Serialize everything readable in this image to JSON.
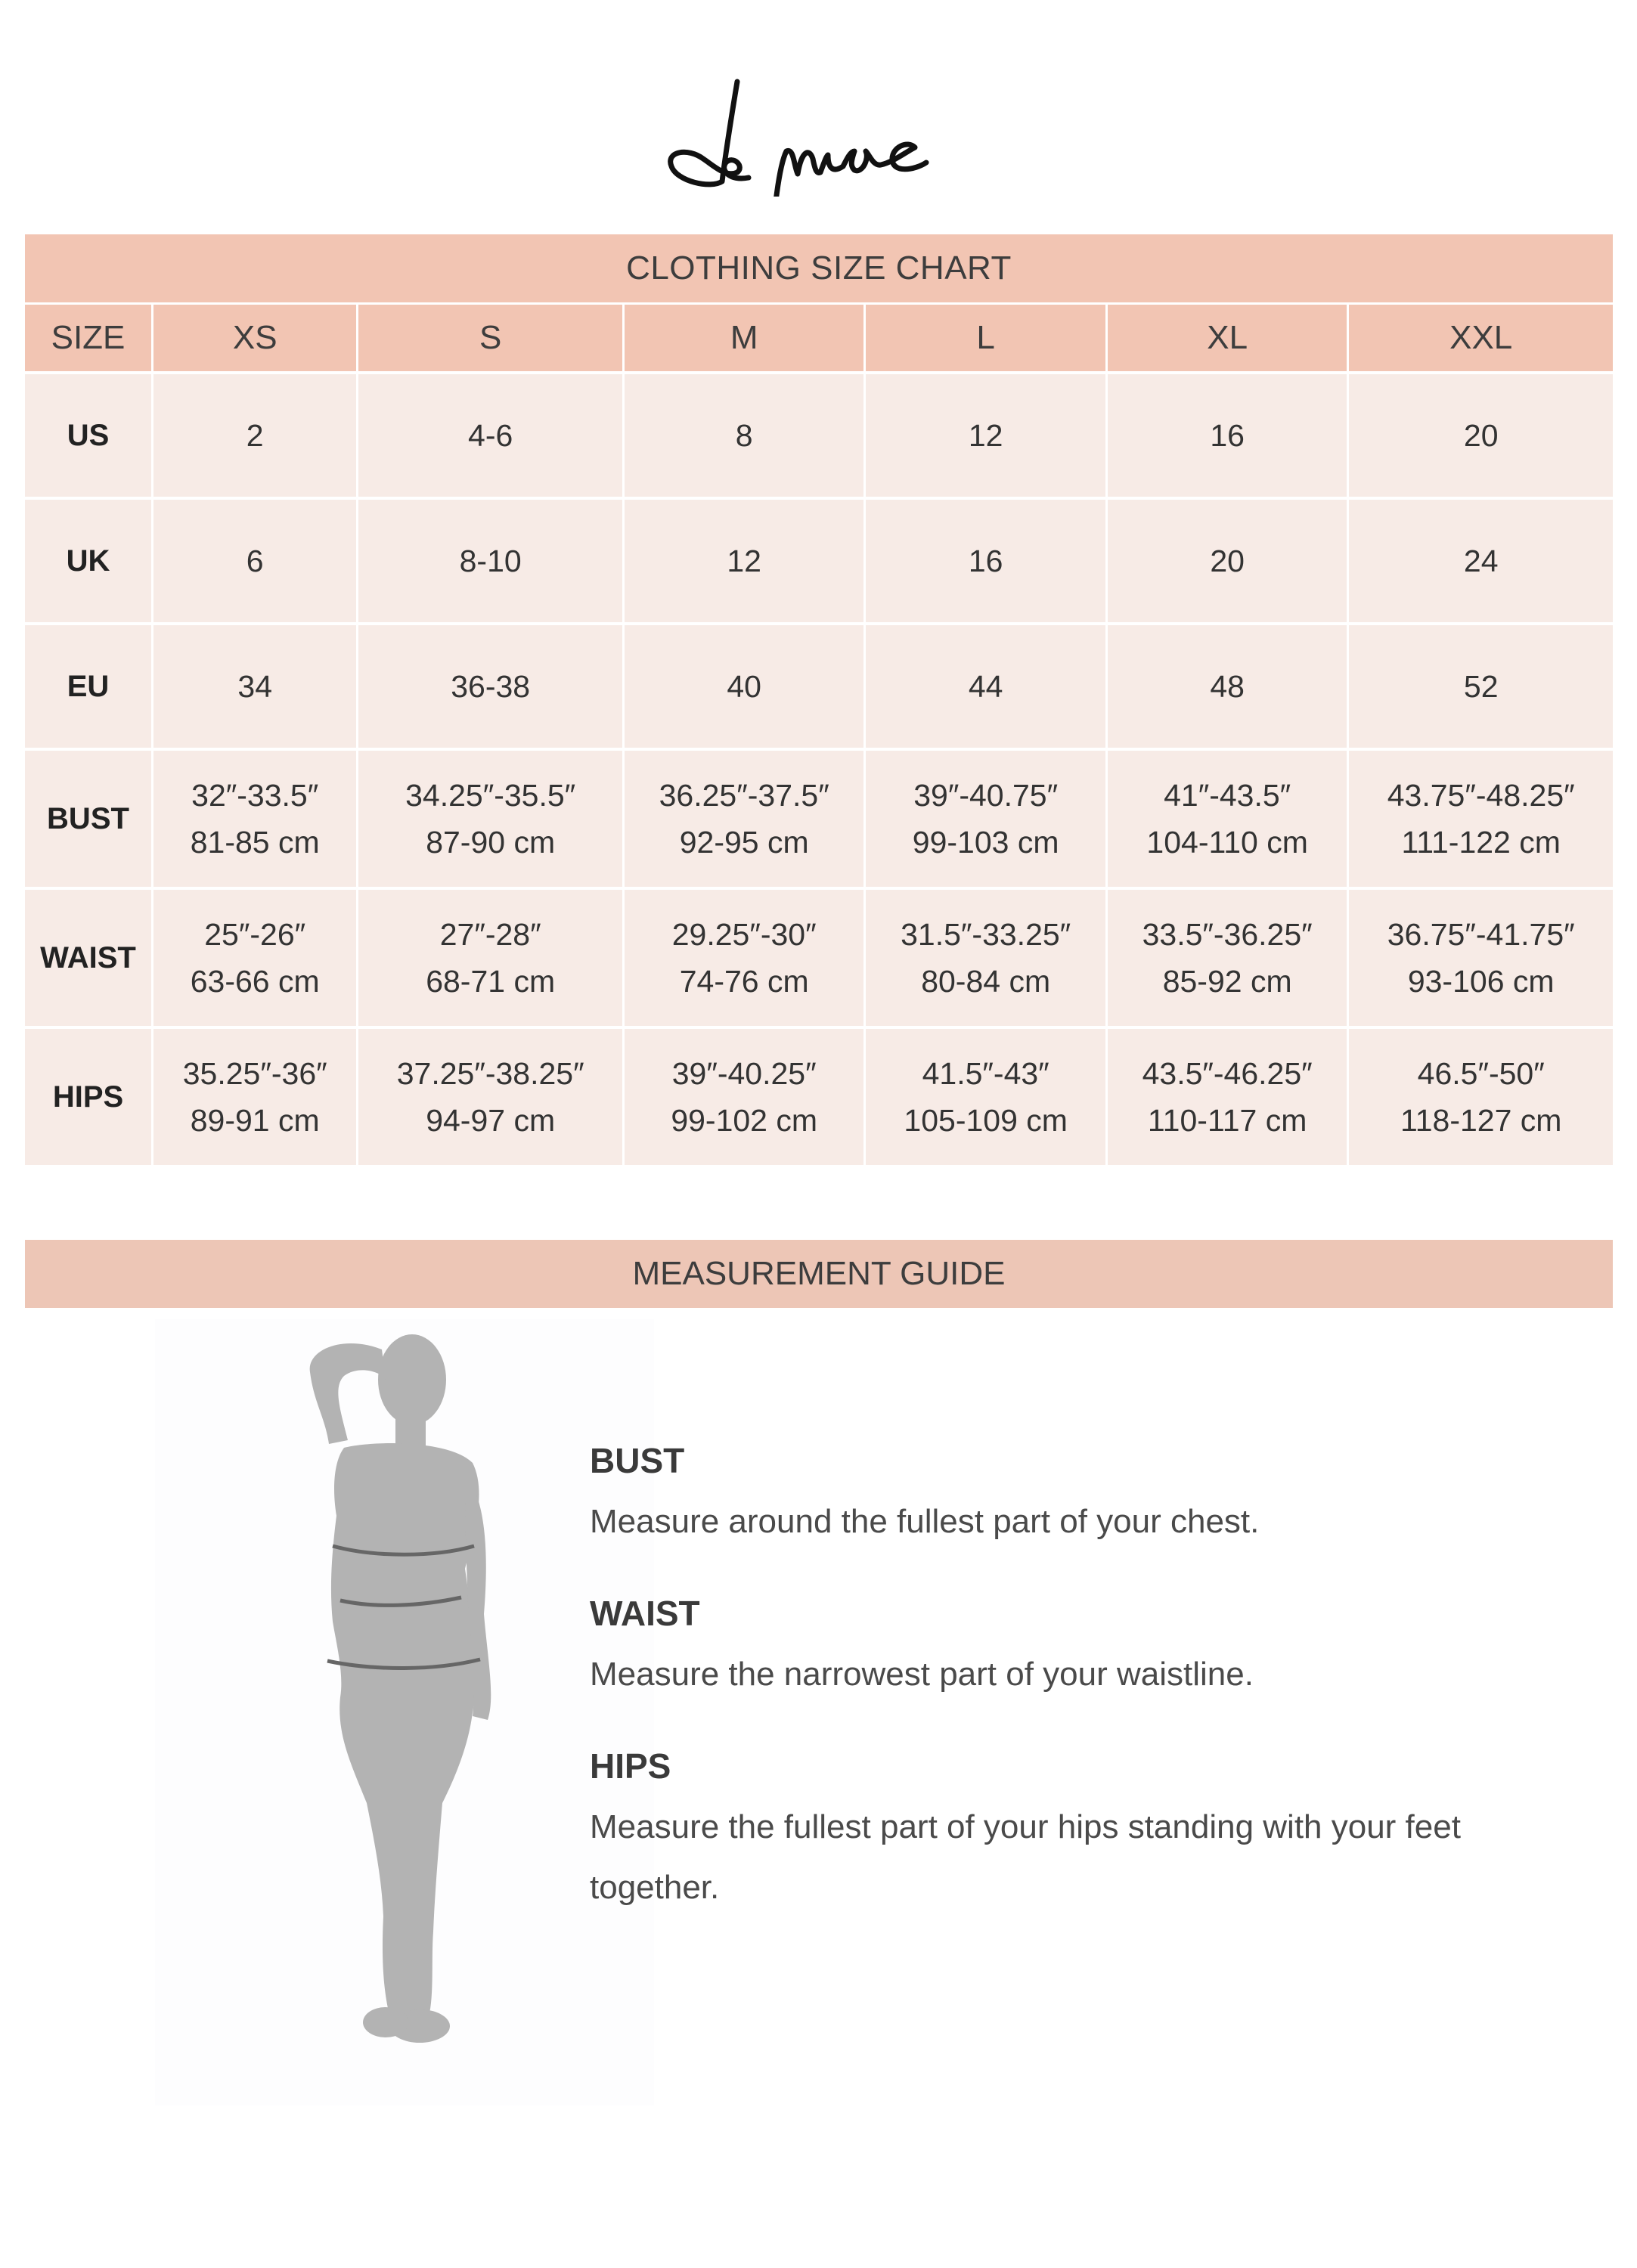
{
  "logo": {
    "text": "Le muse"
  },
  "size_chart": {
    "title": "CLOTHING SIZE CHART",
    "header": [
      "SIZE",
      "XS",
      "S",
      "M",
      "L",
      "XL",
      "XXL"
    ],
    "rows": [
      {
        "label": "US",
        "cells": [
          [
            "2"
          ],
          [
            "4-6"
          ],
          [
            "8"
          ],
          [
            "12"
          ],
          [
            "16"
          ],
          [
            "20"
          ]
        ]
      },
      {
        "label": "UK",
        "cells": [
          [
            "6"
          ],
          [
            "8-10"
          ],
          [
            "12"
          ],
          [
            "16"
          ],
          [
            "20"
          ],
          [
            "24"
          ]
        ]
      },
      {
        "label": "EU",
        "cells": [
          [
            "34"
          ],
          [
            "36-38"
          ],
          [
            "40"
          ],
          [
            "44"
          ],
          [
            "48"
          ],
          [
            "52"
          ]
        ]
      },
      {
        "label": "BUST",
        "cells": [
          [
            "32″-33.5″",
            "81-85 cm"
          ],
          [
            "34.25″-35.5″",
            "87-90 cm"
          ],
          [
            "36.25″-37.5″",
            "92-95 cm"
          ],
          [
            "39″-40.75″",
            "99-103 cm"
          ],
          [
            "41″-43.5″",
            "104-110 cm"
          ],
          [
            "43.75″-48.25″",
            "111-122 cm"
          ]
        ]
      },
      {
        "label": "WAIST",
        "cells": [
          [
            "25″-26″",
            "63-66 cm"
          ],
          [
            "27″-28″",
            "68-71 cm"
          ],
          [
            "29.25″-30″",
            "74-76 cm"
          ],
          [
            "31.5″-33.25″",
            "80-84 cm"
          ],
          [
            "33.5″-36.25″",
            "85-92 cm"
          ],
          [
            "36.75″-41.75″",
            "93-106 cm"
          ]
        ]
      },
      {
        "label": "HIPS",
        "cells": [
          [
            "35.25″-36″",
            "89-91 cm"
          ],
          [
            "37.25″-38.25″",
            "94-97 cm"
          ],
          [
            "39″-40.25″",
            "99-102 cm"
          ],
          [
            "41.5″-43″",
            "105-109 cm"
          ],
          [
            "43.5″-46.25″",
            "110-117 cm"
          ],
          [
            "46.5″-50″",
            "118-127 cm"
          ]
        ]
      }
    ]
  },
  "measurement_guide": {
    "title": "MEASUREMENT GUIDE",
    "items": [
      {
        "title": "BUST",
        "description": "Measure around the fullest part of your chest."
      },
      {
        "title": "WAIST",
        "description": "Measure the narrowest part of your waistline."
      },
      {
        "title": "HIPS",
        "description": "Measure the fullest part of your hips standing with your feet together."
      }
    ]
  },
  "colors": {
    "header_bg": "#f2c5b3",
    "cell_bg": "#f7ebe6",
    "figure": "#b3b3b3"
  }
}
